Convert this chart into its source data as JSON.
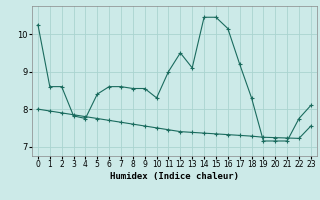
{
  "line1_x": [
    0,
    1,
    2,
    3,
    4,
    5,
    6,
    7,
    8,
    9,
    10,
    11,
    12,
    13,
    14,
    15,
    16,
    17,
    18,
    19,
    20,
    21,
    22,
    23
  ],
  "line1_y": [
    10.25,
    8.6,
    8.6,
    7.82,
    7.75,
    8.4,
    8.6,
    8.6,
    8.55,
    8.55,
    8.3,
    9.0,
    9.5,
    9.1,
    10.45,
    10.45,
    10.15,
    9.2,
    8.3,
    7.15,
    7.15,
    7.15,
    7.75,
    8.1
  ],
  "line2_x": [
    0,
    1,
    2,
    3,
    4,
    5,
    6,
    7,
    8,
    9,
    10,
    11,
    12,
    13,
    14,
    15,
    16,
    17,
    18,
    19,
    20,
    21,
    22,
    23
  ],
  "line2_y": [
    8.0,
    7.95,
    7.9,
    7.85,
    7.8,
    7.75,
    7.7,
    7.65,
    7.6,
    7.55,
    7.5,
    7.45,
    7.4,
    7.38,
    7.36,
    7.34,
    7.32,
    7.3,
    7.28,
    7.25,
    7.24,
    7.23,
    7.22,
    7.55
  ],
  "line_color": "#1a6b5e",
  "bg_color": "#cceae8",
  "grid_color": "#aad4d0",
  "xlabel": "Humidex (Indice chaleur)",
  "xlim": [
    -0.5,
    23.5
  ],
  "ylim": [
    6.75,
    10.75
  ],
  "yticks": [
    7,
    8,
    9,
    10
  ],
  "xticks": [
    0,
    1,
    2,
    3,
    4,
    5,
    6,
    7,
    8,
    9,
    10,
    11,
    12,
    13,
    14,
    15,
    16,
    17,
    18,
    19,
    20,
    21,
    22,
    23
  ],
  "marker": "+",
  "marker_size": 3,
  "linewidth": 0.8,
  "xlabel_fontsize": 6.5,
  "tick_fontsize": 5.5
}
